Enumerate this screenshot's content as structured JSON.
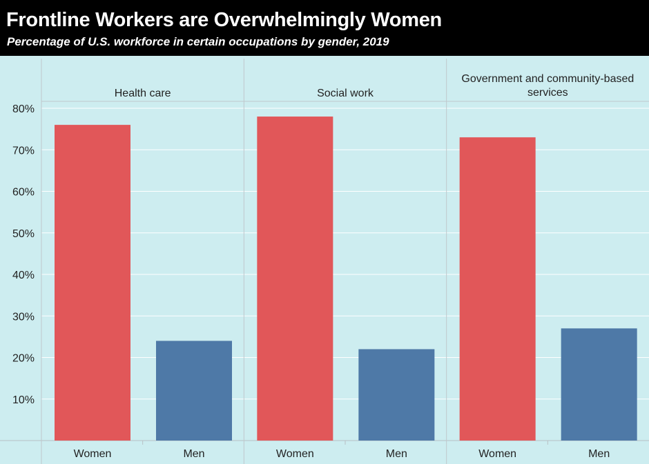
{
  "header": {
    "title": "Frontline Workers are Overwhelmingly Women",
    "subtitle": "Percentage of U.S. workforce in certain occupations by gender, 2019"
  },
  "chart_data": {
    "type": "bar",
    "title": "Frontline Workers are Overwhelmingly Women",
    "subtitle": "Percentage of U.S. workforce in certain occupations by gender, 2019",
    "xlabel": "",
    "ylabel": "",
    "ylim": [
      0,
      80
    ],
    "yticks": [
      10,
      20,
      30,
      40,
      50,
      60,
      70,
      80
    ],
    "ytick_labels": [
      "10%",
      "20%",
      "30%",
      "40%",
      "50%",
      "60%",
      "70%",
      "80%"
    ],
    "grid": true,
    "categories": [
      "Women",
      "Men"
    ],
    "panels": [
      {
        "label_lines": [
          "Health care"
        ],
        "values": [
          76,
          24
        ]
      },
      {
        "label_lines": [
          "Social work"
        ],
        "values": [
          78,
          22
        ]
      },
      {
        "label_lines": [
          "Government and community-based",
          "services"
        ],
        "values": [
          73,
          27
        ]
      }
    ],
    "colors": {
      "Women": "#e15759",
      "Men": "#4e79a7"
    },
    "background": "#cdedf0"
  }
}
